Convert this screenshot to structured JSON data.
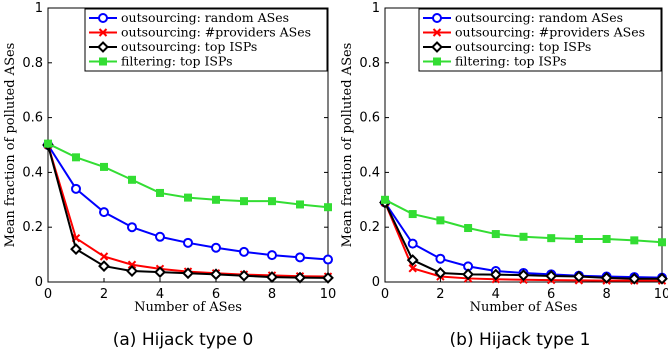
{
  "chart_data": [
    {
      "type": "line",
      "caption": "(a) Hijack type 0",
      "xlabel": "Number of ASes",
      "ylabel": "Mean fraction of polluted ASes",
      "xlim": [
        0,
        10
      ],
      "ylim": [
        0,
        1
      ],
      "xticks": [
        "0",
        "2",
        "4",
        "6",
        "8",
        "10"
      ],
      "yticks": [
        "0",
        "0.2",
        "0.4",
        "0.6",
        "0.8",
        "1"
      ],
      "legend_position": "top-right",
      "x": [
        0,
        1,
        2,
        3,
        4,
        5,
        6,
        7,
        8,
        9,
        10
      ],
      "series": [
        {
          "name": "outsourcing: random ASes",
          "color": "#0000ff",
          "marker": "circle",
          "values": [
            0.5,
            0.34,
            0.255,
            0.2,
            0.165,
            0.143,
            0.125,
            0.11,
            0.098,
            0.09,
            0.082
          ]
        },
        {
          "name": "outsourcing: #providers ASes",
          "color": "#ff0000",
          "marker": "x",
          "values": [
            0.5,
            0.16,
            0.093,
            0.063,
            0.048,
            0.038,
            0.032,
            0.027,
            0.024,
            0.021,
            0.02
          ]
        },
        {
          "name": "outsourcing: top ISPs",
          "color": "#000000",
          "marker": "diamond",
          "values": [
            0.5,
            0.12,
            0.058,
            0.04,
            0.036,
            0.032,
            0.028,
            0.023,
            0.018,
            0.016,
            0.015
          ]
        },
        {
          "name": "filtering: top ISPs",
          "color": "#33dd33",
          "marker": "square",
          "values": [
            0.505,
            0.455,
            0.42,
            0.373,
            0.325,
            0.308,
            0.3,
            0.295,
            0.295,
            0.283,
            0.273
          ]
        }
      ]
    },
    {
      "type": "line",
      "caption": "(b) Hijack type 1",
      "xlabel": "Number of ASes",
      "ylabel": "Mean fraction of polluted ASes",
      "xlim": [
        0,
        10
      ],
      "ylim": [
        0,
        1
      ],
      "xticks": [
        "0",
        "2",
        "4",
        "6",
        "8",
        "10"
      ],
      "yticks": [
        "0",
        "0.2",
        "0.4",
        "0.6",
        "0.8",
        "1"
      ],
      "legend_position": "top-right",
      "x": [
        0,
        1,
        2,
        3,
        4,
        5,
        6,
        7,
        8,
        9,
        10
      ],
      "series": [
        {
          "name": "outsourcing: random ASes",
          "color": "#0000ff",
          "marker": "circle",
          "values": [
            0.29,
            0.14,
            0.085,
            0.057,
            0.04,
            0.033,
            0.028,
            0.023,
            0.02,
            0.018,
            0.016
          ]
        },
        {
          "name": "outsourcing: #providers ASes",
          "color": "#ff0000",
          "marker": "x",
          "values": [
            0.29,
            0.05,
            0.02,
            0.013,
            0.01,
            0.008,
            0.007,
            0.006,
            0.005,
            0.005,
            0.005
          ]
        },
        {
          "name": "outsourcing: top ISPs",
          "color": "#000000",
          "marker": "diamond",
          "values": [
            0.29,
            0.08,
            0.033,
            0.028,
            0.027,
            0.025,
            0.022,
            0.02,
            0.015,
            0.012,
            0.012
          ]
        },
        {
          "name": "filtering: top ISPs",
          "color": "#33dd33",
          "marker": "square",
          "values": [
            0.3,
            0.248,
            0.225,
            0.197,
            0.175,
            0.165,
            0.16,
            0.157,
            0.157,
            0.152,
            0.145
          ]
        }
      ]
    }
  ]
}
